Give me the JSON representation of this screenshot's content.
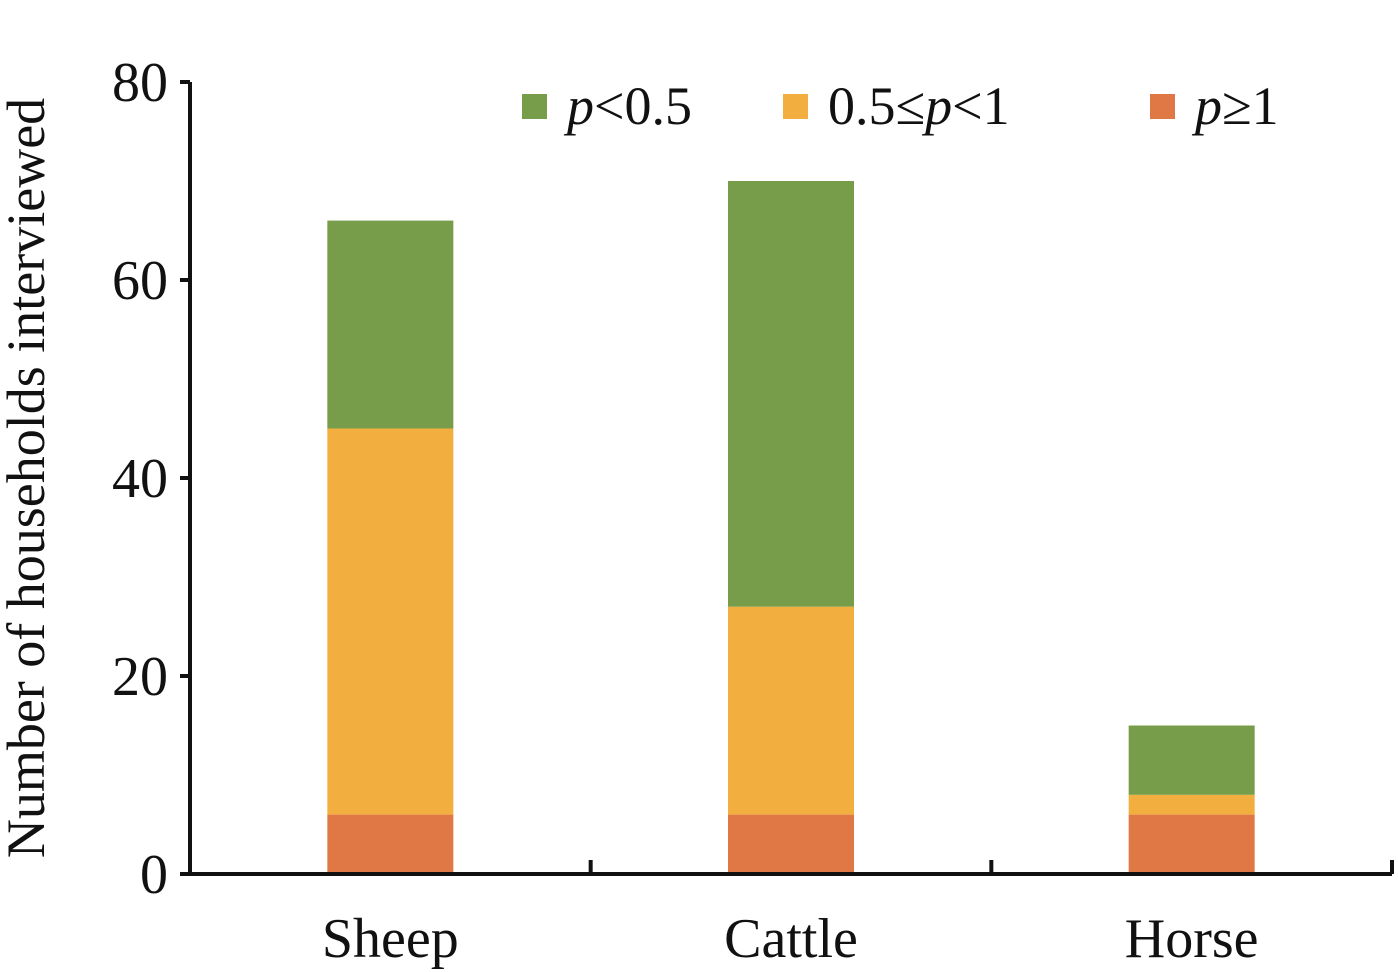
{
  "chart_data": {
    "type": "bar",
    "stacked": true,
    "categories": [
      "Sheep",
      "Cattle",
      "Horse"
    ],
    "ylabel": "Number of households interviewed",
    "xlabel": "",
    "ylim": [
      0,
      80
    ],
    "yticks": [
      0,
      20,
      40,
      60,
      80
    ],
    "grid": false,
    "legend_position": "top-right",
    "series": [
      {
        "name": "p≥1",
        "legend": {
          "italic": "p",
          "rest": "≥1"
        },
        "color": "#e07845",
        "values": [
          6,
          6,
          6
        ]
      },
      {
        "name": "0.5≤p<1",
        "legend": {
          "prefix": "0.5≤",
          "italic": "p",
          "rest": "<1"
        },
        "color": "#f2af3f",
        "values": [
          39,
          21,
          2
        ]
      },
      {
        "name": "p<0.5",
        "legend": {
          "italic": "p",
          "rest": "<0.5"
        },
        "color": "#789d4a",
        "values": [
          21,
          43,
          7
        ]
      }
    ],
    "legend_order": [
      2,
      1,
      0
    ]
  }
}
